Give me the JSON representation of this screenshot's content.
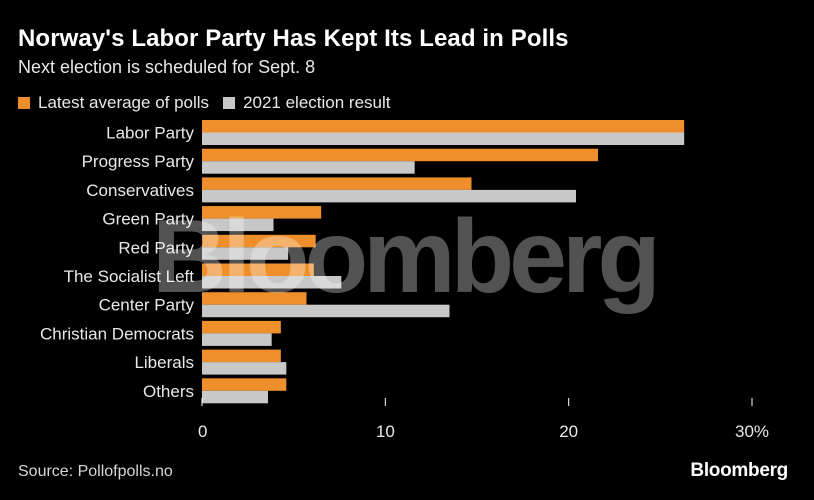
{
  "header": {
    "title": "Norway's Labor Party Has Kept Its Lead in Polls",
    "subtitle": "Next election is scheduled for Sept. 8"
  },
  "colors": {
    "background": "#000000",
    "latest": "#ee8f2b",
    "election": "#c8c8c8",
    "axis": "#ffffff"
  },
  "chart_data": {
    "type": "bar",
    "orientation": "horizontal",
    "title": "Norway's Labor Party Has Kept Its Lead in Polls",
    "subtitle": "Next election is scheduled for Sept. 8",
    "categories": [
      "Labor Party",
      "Progress Party",
      "Conservatives",
      "Green Party",
      "Red Party",
      "The Socialist Left",
      "Center Party",
      "Christian Democrats",
      "Liberals",
      "Others"
    ],
    "series": [
      {
        "name": "Latest average of polls",
        "values": [
          26.3,
          21.6,
          14.7,
          6.5,
          6.2,
          6.1,
          5.7,
          4.3,
          4.3,
          4.6
        ]
      },
      {
        "name": "2021 election result",
        "values": [
          26.3,
          11.6,
          20.4,
          3.9,
          4.7,
          7.6,
          13.5,
          3.8,
          4.6,
          3.6
        ]
      }
    ],
    "xlim": [
      0,
      30
    ],
    "xticks": [
      0,
      10,
      20,
      30
    ],
    "xtick_labels": [
      "0",
      "10",
      "20",
      "30%"
    ],
    "xlabel": "",
    "ylabel": "",
    "legend_position": "top-left",
    "grid": false
  },
  "watermark": "Bloomberg",
  "footer": {
    "source": "Source: Pollofpolls.no",
    "brand": "Bloomberg"
  }
}
